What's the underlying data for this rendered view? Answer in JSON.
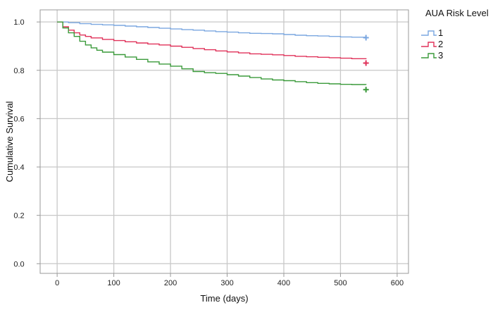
{
  "chart_data": {
    "type": "line",
    "title": "",
    "xlabel": "Time (days)",
    "ylabel": "Cumulative Survival",
    "xlim": [
      -30,
      620
    ],
    "ylim": [
      -0.04,
      1.05
    ],
    "x_ticks": [
      0,
      100,
      200,
      300,
      400,
      500,
      600
    ],
    "y_ticks": [
      0.0,
      0.2,
      0.4,
      0.6,
      0.8,
      1.0
    ],
    "x_tick_labels": [
      "0",
      "100",
      "200",
      "300",
      "400",
      "500",
      "600"
    ],
    "y_tick_labels": [
      "0.0",
      "0.2",
      "0.4",
      "0.6",
      "0.8",
      "1.0"
    ],
    "grid": true,
    "step": true,
    "legend": {
      "title": "AUA Risk Level",
      "position": "top-right"
    },
    "series": [
      {
        "name": "1",
        "color": "#7ba7e0",
        "x": [
          0,
          20,
          40,
          60,
          80,
          100,
          120,
          140,
          160,
          180,
          200,
          220,
          240,
          260,
          280,
          300,
          320,
          340,
          360,
          380,
          400,
          420,
          440,
          460,
          480,
          500,
          520,
          545
        ],
        "y": [
          1.0,
          0.997,
          0.993,
          0.99,
          0.988,
          0.986,
          0.983,
          0.98,
          0.977,
          0.974,
          0.971,
          0.968,
          0.966,
          0.963,
          0.96,
          0.958,
          0.955,
          0.953,
          0.952,
          0.951,
          0.948,
          0.945,
          0.943,
          0.942,
          0.94,
          0.938,
          0.937,
          0.936
        ],
        "censor": {
          "x": 545,
          "y": 0.935
        }
      },
      {
        "name": "2",
        "color": "#e0325a",
        "x": [
          0,
          10,
          20,
          30,
          40,
          50,
          60,
          80,
          100,
          120,
          140,
          160,
          180,
          200,
          220,
          240,
          260,
          280,
          300,
          320,
          340,
          360,
          380,
          400,
          420,
          440,
          460,
          480,
          500,
          520,
          545
        ],
        "y": [
          1.0,
          0.98,
          0.966,
          0.955,
          0.946,
          0.94,
          0.934,
          0.928,
          0.923,
          0.918,
          0.913,
          0.909,
          0.905,
          0.9,
          0.895,
          0.89,
          0.885,
          0.88,
          0.876,
          0.872,
          0.868,
          0.866,
          0.864,
          0.861,
          0.858,
          0.856,
          0.854,
          0.852,
          0.85,
          0.848,
          0.846
        ],
        "censor": {
          "x": 545,
          "y": 0.83
        }
      },
      {
        "name": "3",
        "color": "#3a9a3a",
        "x": [
          0,
          10,
          20,
          30,
          40,
          50,
          60,
          70,
          80,
          100,
          120,
          140,
          160,
          180,
          200,
          220,
          240,
          260,
          280,
          300,
          320,
          340,
          360,
          380,
          400,
          420,
          440,
          460,
          480,
          500,
          520,
          545
        ],
        "y": [
          1.0,
          0.975,
          0.955,
          0.94,
          0.92,
          0.905,
          0.893,
          0.883,
          0.875,
          0.865,
          0.855,
          0.845,
          0.835,
          0.826,
          0.817,
          0.806,
          0.795,
          0.79,
          0.787,
          0.782,
          0.776,
          0.77,
          0.764,
          0.76,
          0.757,
          0.753,
          0.749,
          0.746,
          0.744,
          0.742,
          0.741,
          0.74
        ],
        "censor": {
          "x": 545,
          "y": 0.72
        }
      }
    ]
  }
}
